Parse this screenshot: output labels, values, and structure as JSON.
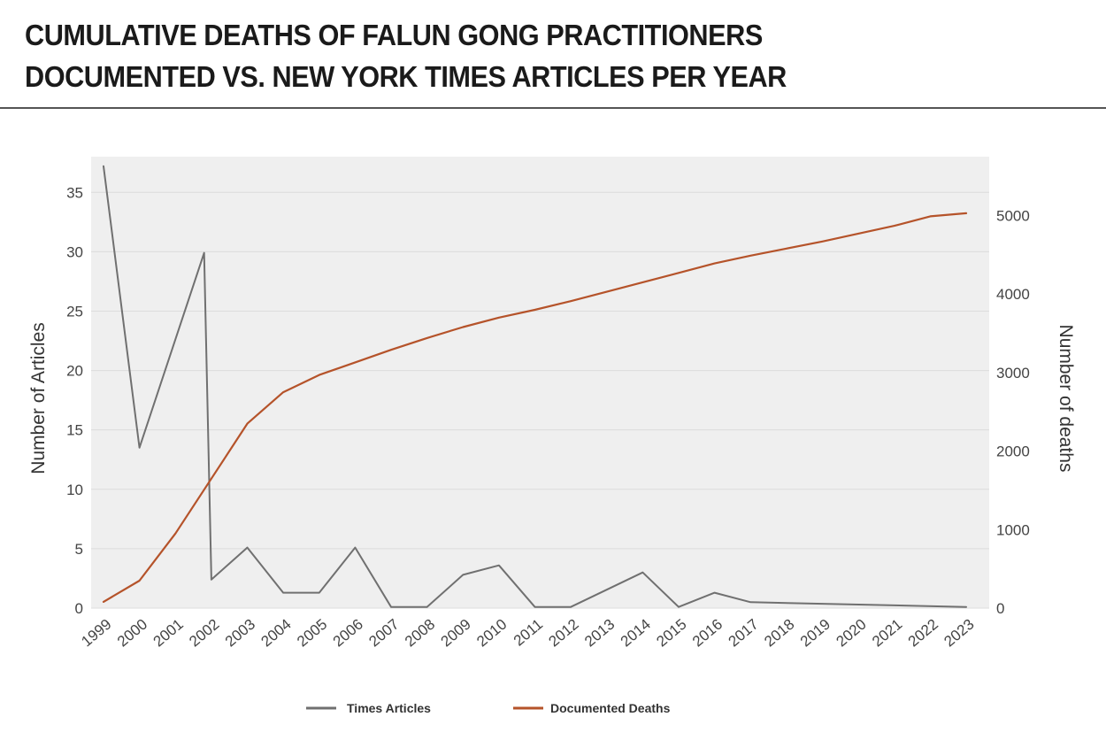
{
  "header": {
    "title_line1": "CUMULATIVE DEATHS OF FALUN GONG PRACTITIONERS",
    "title_line2": "DOCUMENTED VS. NEW YORK TIMES ARTICLES PER YEAR"
  },
  "chart_data": {
    "type": "line",
    "xlabel": "",
    "ylabel": "Number of Articles",
    "y2label": "Number of deaths",
    "x": [
      "1999",
      "2000",
      "2001",
      "2002",
      "2003",
      "2004",
      "2005",
      "2006",
      "2007",
      "2008",
      "2009",
      "2010",
      "2011",
      "2012",
      "2013",
      "2014",
      "2015",
      "2016",
      "2017",
      "2018",
      "2019",
      "2020",
      "2021",
      "2022",
      "2023"
    ],
    "ylim": [
      0,
      38
    ],
    "y_ticks": [
      0,
      5,
      10,
      15,
      20,
      25,
      30,
      35
    ],
    "y2lim": [
      0,
      5750
    ],
    "y2_ticks": [
      0,
      1000,
      2000,
      3000,
      4000,
      5000
    ],
    "grid": true,
    "legend_position": "bottom-center",
    "series": [
      {
        "name": "Times Articles",
        "axis": "left",
        "color": "#707070",
        "points": [
          {
            "x": "1999",
            "y": 37.2
          },
          {
            "x": "2000",
            "y": 13.5
          },
          {
            "x": "2001.8",
            "y": 29.9
          },
          {
            "x": "2002",
            "y": 2.4
          },
          {
            "x": "2003",
            "y": 5.1
          },
          {
            "x": "2004",
            "y": 1.3
          },
          {
            "x": "2005",
            "y": 1.3
          },
          {
            "x": "2006",
            "y": 5.1
          },
          {
            "x": "2007",
            "y": 0.1
          },
          {
            "x": "2008",
            "y": 0.1
          },
          {
            "x": "2009",
            "y": 2.8
          },
          {
            "x": "2010",
            "y": 3.6
          },
          {
            "x": "2011",
            "y": 0.1
          },
          {
            "x": "2012",
            "y": 0.1
          },
          {
            "x": "2014",
            "y": 3.0
          },
          {
            "x": "2015",
            "y": 0.1
          },
          {
            "x": "2016",
            "y": 1.3
          },
          {
            "x": "2017",
            "y": 0.5
          },
          {
            "x": "2023",
            "y": 0.1
          }
        ]
      },
      {
        "name": "Documented Deaths",
        "axis": "right",
        "color": "#b5532a",
        "points": [
          {
            "x": "1999",
            "y": 80
          },
          {
            "x": "2000",
            "y": 350
          },
          {
            "x": "2001",
            "y": 950
          },
          {
            "x": "2002",
            "y": 1650
          },
          {
            "x": "2003",
            "y": 2350
          },
          {
            "x": "2004",
            "y": 2750
          },
          {
            "x": "2005",
            "y": 2970
          },
          {
            "x": "2006",
            "y": 3130
          },
          {
            "x": "2007",
            "y": 3290
          },
          {
            "x": "2008",
            "y": 3440
          },
          {
            "x": "2009",
            "y": 3580
          },
          {
            "x": "2010",
            "y": 3700
          },
          {
            "x": "2011",
            "y": 3800
          },
          {
            "x": "2012",
            "y": 3910
          },
          {
            "x": "2013",
            "y": 4030
          },
          {
            "x": "2014",
            "y": 4150
          },
          {
            "x": "2015",
            "y": 4270
          },
          {
            "x": "2016",
            "y": 4390
          },
          {
            "x": "2017",
            "y": 4490
          },
          {
            "x": "2018",
            "y": 4580
          },
          {
            "x": "2019",
            "y": 4670
          },
          {
            "x": "2020",
            "y": 4770
          },
          {
            "x": "2021",
            "y": 4870
          },
          {
            "x": "2022",
            "y": 4990
          },
          {
            "x": "2023",
            "y": 5030
          }
        ]
      }
    ]
  }
}
